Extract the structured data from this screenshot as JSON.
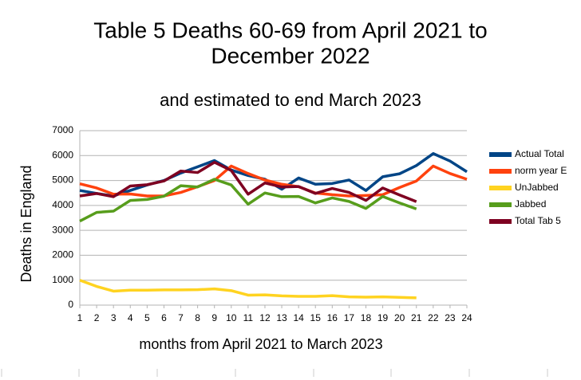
{
  "chart_data": {
    "type": "line",
    "title": [
      "Table 5 Deaths 60-69 from April 2021 to",
      "December 2022"
    ],
    "subtitle": "and estimated to end March 2023",
    "y_label": "Deaths in England",
    "x_label": "months from April 2021 to March 2023",
    "x": [
      1,
      2,
      3,
      4,
      5,
      6,
      7,
      8,
      9,
      10,
      11,
      12,
      13,
      14,
      15,
      16,
      17,
      18,
      19,
      20,
      21,
      22,
      23,
      24
    ],
    "xlim": [
      1,
      24
    ],
    "xticks": [
      1,
      2,
      3,
      4,
      5,
      6,
      7,
      8,
      9,
      10,
      11,
      12,
      13,
      14,
      15,
      16,
      17,
      18,
      19,
      20,
      21,
      22,
      23,
      24
    ],
    "ylim": [
      0,
      7000
    ],
    "yticks": [
      0,
      1000,
      2000,
      3000,
      4000,
      5000,
      6000,
      7000
    ],
    "grid": true,
    "legend": "right",
    "series": [
      {
        "name": "Actual Total",
        "color": "#004586",
        "values": [
          4600,
          4480,
          4380,
          4600,
          4820,
          5000,
          5300,
          5550,
          5800,
          5420,
          5200,
          5050,
          4650,
          5100,
          4850,
          4880,
          5020,
          4600,
          5150,
          5270,
          5600,
          6080,
          5780,
          5350
        ]
      },
      {
        "name": "norm year E",
        "color": "#ff420e",
        "values": [
          4870,
          4700,
          4450,
          4460,
          4380,
          4380,
          4520,
          4750,
          5000,
          5580,
          5280,
          5020,
          4850,
          4750,
          4500,
          4430,
          4380,
          4400,
          4430,
          4720,
          4980,
          5580,
          5280,
          5050
        ]
      },
      {
        "name": "UnJabbed",
        "color": "#ffd320",
        "values": [
          1000,
          750,
          560,
          600,
          600,
          610,
          610,
          620,
          650,
          580,
          400,
          410,
          370,
          350,
          350,
          380,
          330,
          320,
          330,
          310,
          290,
          null,
          null,
          null
        ]
      },
      {
        "name": "Jabbed",
        "color": "#579d1c",
        "values": [
          3370,
          3720,
          3770,
          4200,
          4240,
          4370,
          4790,
          4740,
          5050,
          4820,
          4050,
          4500,
          4350,
          4360,
          4100,
          4300,
          4160,
          3880,
          4360,
          4100,
          3860,
          null,
          null,
          null
        ]
      },
      {
        "name": "Total Tab 5",
        "color": "#7e0021",
        "values": [
          4380,
          4480,
          4350,
          4780,
          4830,
          4980,
          5380,
          5320,
          5730,
          5400,
          4450,
          4900,
          4740,
          4760,
          4480,
          4680,
          4520,
          4200,
          4700,
          4420,
          4150,
          null,
          null,
          null
        ]
      }
    ]
  }
}
